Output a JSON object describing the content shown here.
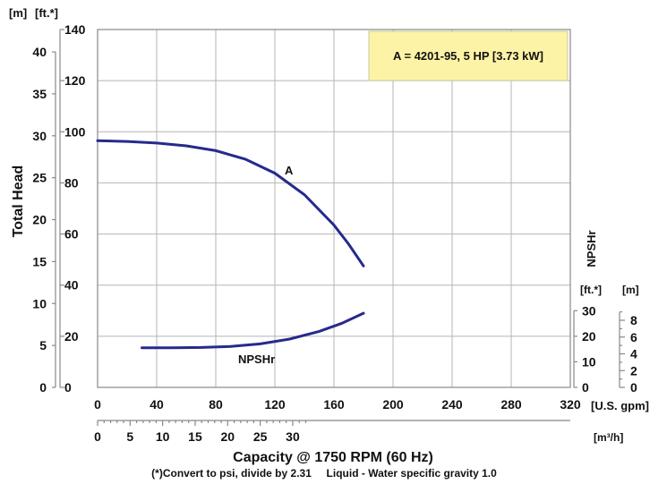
{
  "chart_data": {
    "type": "line",
    "annotation": "A = 4201-95, 5 HP [3.73 kW]",
    "x_axis": {
      "title": "Capacity @ 1750 RPM (60 Hz)",
      "unit": "[U.S. gpm]",
      "range": [
        0,
        320
      ],
      "ticks": [
        "0",
        "40",
        "80",
        "120",
        "160",
        "200",
        "240",
        "280",
        "320"
      ],
      "secondary_unit": "[m³/h]",
      "secondary_ticks": [
        "0",
        "5",
        "10",
        "15",
        "20",
        "25",
        "30"
      ]
    },
    "y_axis_left": {
      "title": "Total Head",
      "unit_ft": "[ft.*]",
      "unit_m": "[m]",
      "range_ft": [
        0,
        140
      ],
      "ticks_ft": [
        "0",
        "20",
        "40",
        "60",
        "80",
        "100",
        "120",
        "140"
      ],
      "ticks_m": [
        "0",
        "5",
        "10",
        "15",
        "20",
        "25",
        "30",
        "35",
        "40"
      ]
    },
    "y_axis_right": {
      "title": "NPSHr",
      "unit_ft": "[ft.*]",
      "unit_m": "[m]",
      "ticks_ft": [
        "0",
        "10",
        "20",
        "30"
      ],
      "ticks_m": [
        "0",
        "2",
        "4",
        "6",
        "8"
      ]
    },
    "series": [
      {
        "name": "A",
        "axis": "head",
        "x": [
          0,
          20,
          40,
          60,
          80,
          100,
          120,
          140,
          160,
          170,
          180
        ],
        "y": [
          96.5,
          96.2,
          95.6,
          94.5,
          92.6,
          89.3,
          83.8,
          75.4,
          63.5,
          56.0,
          47.5
        ]
      },
      {
        "name": "NPSHr",
        "axis": "npshr",
        "x": [
          30,
          50,
          70,
          90,
          110,
          130,
          150,
          165,
          180
        ],
        "y": [
          15.5,
          15.5,
          15.6,
          16.0,
          17.0,
          18.9,
          21.9,
          25.0,
          29.0
        ]
      }
    ],
    "footnote": "(*)Convert to psi, divide by 2.31     Liquid - Water specific gravity 1.0"
  }
}
